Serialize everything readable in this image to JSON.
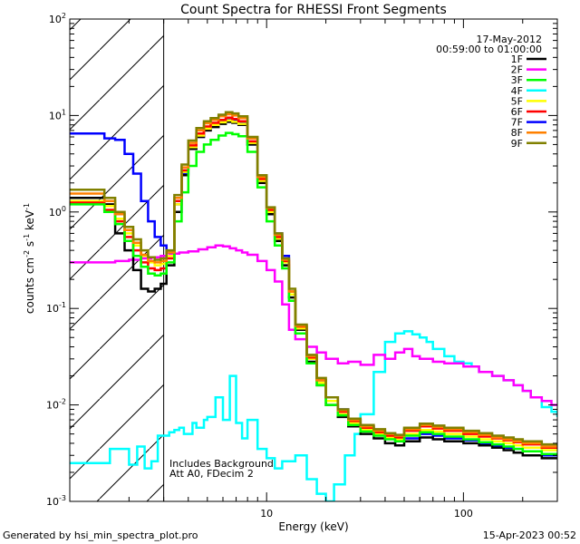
{
  "chart_data": {
    "type": "line",
    "title": "Count Spectra for RHESSI Front Segments",
    "xlabel": "Energy (keV)",
    "ylabel": "counts cm⁻² s⁻¹ keV⁻¹",
    "ylabel_parts": {
      "base": "counts cm",
      "e1": "-2",
      "mid1": " s",
      "e2": "-1",
      "mid2": " keV",
      "e3": "-1"
    },
    "x_scale": "log",
    "y_scale": "log",
    "xlim": [
      1,
      300
    ],
    "ylim": [
      0.001,
      100
    ],
    "x_ticks": [
      {
        "value": 10,
        "label": "10"
      },
      {
        "value": 100,
        "label": "100"
      }
    ],
    "y_ticks": [
      {
        "value": 0.001,
        "base": "10",
        "exp": "-3"
      },
      {
        "value": 0.01,
        "base": "10",
        "exp": "-2"
      },
      {
        "value": 0.1,
        "base": "10",
        "exp": "-1"
      },
      {
        "value": 1,
        "base": "10",
        "exp": "0"
      },
      {
        "value": 10,
        "base": "10",
        "exp": "1"
      },
      {
        "value": 100,
        "base": "10",
        "exp": "2"
      }
    ],
    "hatch_region_x": [
      1,
      3
    ],
    "info_date": "17-May-2012",
    "info_time": "00:59:00 to 01:00:00",
    "annotation_1": "Includes Background",
    "annotation_2": "Att A0, FDecim 2",
    "footer_left": "Generated by hsi_min_spectra_plot.pro",
    "footer_right": "15-Apr-2023 00:52",
    "legend": [
      {
        "name": "1F",
        "color": "#000000"
      },
      {
        "name": "2F",
        "color": "#ff00ff"
      },
      {
        "name": "3F",
        "color": "#00ff00"
      },
      {
        "name": "4F",
        "color": "#00ffff"
      },
      {
        "name": "5F",
        "color": "#ffff00"
      },
      {
        "name": "6F",
        "color": "#ff0000"
      },
      {
        "name": "7F",
        "color": "#0000ff"
      },
      {
        "name": "8F",
        "color": "#ff8000"
      },
      {
        "name": "9F",
        "color": "#808000"
      }
    ],
    "series": [
      {
        "name": "4F",
        "color": "#00ffff",
        "x": [
          1,
          1.4,
          1.6,
          1.8,
          2.0,
          2.2,
          2.4,
          2.6,
          2.8,
          3.0,
          3.2,
          3.4,
          3.6,
          3.8,
          4.2,
          4.4,
          4.8,
          5.0,
          5.5,
          6.0,
          6.5,
          7,
          7.5,
          8,
          9,
          10,
          11,
          12,
          14,
          16,
          18,
          20,
          22,
          25,
          28,
          30,
          35,
          40,
          45,
          50,
          55,
          60,
          65,
          70,
          80,
          90,
          100,
          110,
          120,
          140,
          160,
          180,
          200,
          220,
          250,
          280,
          300
        ],
        "y": [
          0.0025,
          0.0025,
          0.0035,
          0.0035,
          0.0024,
          0.0037,
          0.0022,
          0.0026,
          0.0048,
          0.0048,
          0.0052,
          0.0055,
          0.0058,
          0.005,
          0.0065,
          0.0058,
          0.007,
          0.0075,
          0.012,
          0.007,
          0.02,
          0.0065,
          0.0045,
          0.007,
          0.0035,
          0.0028,
          0.0022,
          0.0026,
          0.003,
          0.0017,
          0.0012,
          0.001,
          0.0015,
          0.003,
          0.005,
          0.008,
          0.022,
          0.045,
          0.055,
          0.058,
          0.054,
          0.05,
          0.045,
          0.038,
          0.032,
          0.028,
          0.027,
          0.025,
          0.022,
          0.02,
          0.018,
          0.016,
          0.014,
          0.012,
          0.0095,
          0.0085,
          0.0075
        ]
      },
      {
        "name": "2F",
        "color": "#ff00ff",
        "x": [
          1,
          1.4,
          1.7,
          2.0,
          2.3,
          2.6,
          2.9,
          3.2,
          3.6,
          4,
          4.5,
          5,
          5.5,
          6,
          6.5,
          7,
          7.5,
          8,
          9,
          10,
          11,
          12,
          13,
          14,
          16,
          18,
          20,
          23,
          26,
          30,
          35,
          40,
          45,
          50,
          55,
          60,
          70,
          80,
          90,
          100,
          120,
          140,
          160,
          180,
          200,
          220,
          250,
          280,
          300
        ],
        "y": [
          0.3,
          0.3,
          0.31,
          0.32,
          0.33,
          0.34,
          0.35,
          0.37,
          0.38,
          0.39,
          0.41,
          0.43,
          0.45,
          0.44,
          0.42,
          0.4,
          0.38,
          0.36,
          0.31,
          0.25,
          0.19,
          0.11,
          0.06,
          0.048,
          0.04,
          0.035,
          0.03,
          0.027,
          0.028,
          0.026,
          0.033,
          0.03,
          0.035,
          0.038,
          0.032,
          0.03,
          0.028,
          0.027,
          0.027,
          0.025,
          0.022,
          0.02,
          0.018,
          0.016,
          0.014,
          0.012,
          0.011,
          0.01,
          0.01
        ]
      },
      {
        "name": "7F",
        "color": "#0000ff",
        "x": [
          1,
          1.25,
          1.5,
          1.7,
          1.9,
          2.1,
          2.3,
          2.5,
          2.7,
          2.9,
          3.1,
          3.4,
          3.7,
          4.0,
          4.4,
          4.8,
          5.2,
          5.7,
          6.2,
          6.7,
          7.2,
          8,
          9,
          10,
          11,
          12,
          13,
          14,
          16,
          18,
          20,
          23,
          26,
          30,
          35,
          40,
          45,
          50,
          60,
          70,
          80,
          100,
          120,
          140,
          160,
          180,
          200,
          250,
          300
        ],
        "y": [
          6.5,
          6.5,
          5.8,
          5.6,
          4.0,
          2.5,
          1.3,
          0.8,
          0.55,
          0.45,
          0.38,
          1.2,
          2.5,
          4.5,
          6.0,
          7.2,
          8.0,
          8.8,
          9.2,
          9.0,
          8.6,
          5.0,
          2.1,
          1.1,
          0.6,
          0.35,
          0.14,
          0.06,
          0.03,
          0.018,
          0.012,
          0.009,
          0.007,
          0.006,
          0.005,
          0.0045,
          0.0042,
          0.0045,
          0.005,
          0.0048,
          0.0045,
          0.0043,
          0.004,
          0.0038,
          0.0036,
          0.0035,
          0.0033,
          0.003,
          0.003
        ]
      },
      {
        "name": "1F",
        "color": "#000000",
        "x": [
          1,
          1.25,
          1.5,
          1.7,
          1.9,
          2.1,
          2.3,
          2.5,
          2.7,
          2.9,
          3.1,
          3.4,
          3.7,
          4.0,
          4.4,
          4.8,
          5.2,
          5.7,
          6.2,
          6.7,
          7.2,
          8,
          9,
          10,
          11,
          12,
          13,
          14,
          16,
          18,
          20,
          23,
          26,
          30,
          35,
          40,
          45,
          50,
          60,
          70,
          80,
          100,
          120,
          140,
          160,
          180,
          200,
          250,
          300
        ],
        "y": [
          1.4,
          1.4,
          1.2,
          0.6,
          0.4,
          0.25,
          0.16,
          0.15,
          0.16,
          0.18,
          0.28,
          1.0,
          2.4,
          4.5,
          6.0,
          7.0,
          7.6,
          8.2,
          8.6,
          8.4,
          8.0,
          5.0,
          2.0,
          0.95,
          0.5,
          0.28,
          0.13,
          0.06,
          0.028,
          0.016,
          0.01,
          0.0075,
          0.006,
          0.005,
          0.0045,
          0.004,
          0.0038,
          0.0042,
          0.0046,
          0.0044,
          0.0042,
          0.004,
          0.0038,
          0.0036,
          0.0034,
          0.0032,
          0.003,
          0.0028,
          0.0028
        ]
      },
      {
        "name": "5F",
        "color": "#ffff00",
        "x": [
          1,
          1.25,
          1.5,
          1.7,
          1.9,
          2.1,
          2.3,
          2.5,
          2.7,
          2.9,
          3.1,
          3.4,
          3.7,
          4.0,
          4.4,
          4.8,
          5.2,
          5.7,
          6.2,
          6.7,
          7.2,
          8,
          9,
          10,
          11,
          12,
          13,
          14,
          16,
          18,
          20,
          23,
          26,
          30,
          35,
          40,
          45,
          50,
          60,
          70,
          80,
          100,
          120,
          140,
          160,
          180,
          200,
          250,
          300
        ],
        "y": [
          1.3,
          1.3,
          1.15,
          0.85,
          0.6,
          0.45,
          0.35,
          0.3,
          0.28,
          0.29,
          0.35,
          1.2,
          2.6,
          4.7,
          6.2,
          7.3,
          8.0,
          8.5,
          8.9,
          8.6,
          8.2,
          5.2,
          2.1,
          1.0,
          0.53,
          0.3,
          0.14,
          0.062,
          0.03,
          0.017,
          0.011,
          0.008,
          0.0065,
          0.0055,
          0.005,
          0.0046,
          0.0044,
          0.005,
          0.0055,
          0.0053,
          0.005,
          0.0047,
          0.0044,
          0.0042,
          0.004,
          0.0038,
          0.0036,
          0.0034,
          0.0034
        ]
      },
      {
        "name": "6F",
        "color": "#ff0000",
        "x": [
          1,
          1.25,
          1.5,
          1.7,
          1.9,
          2.1,
          2.3,
          2.5,
          2.7,
          2.9,
          3.1,
          3.4,
          3.7,
          4.0,
          4.4,
          4.8,
          5.2,
          5.7,
          6.2,
          6.7,
          7.2,
          8,
          9,
          10,
          11,
          12,
          13,
          14,
          16,
          18,
          20,
          23,
          26,
          30,
          35,
          40,
          45,
          50,
          60,
          70,
          80,
          100,
          120,
          140,
          160,
          180,
          200,
          250,
          300
        ],
        "y": [
          1.25,
          1.25,
          1.05,
          0.8,
          0.55,
          0.4,
          0.3,
          0.26,
          0.25,
          0.26,
          0.33,
          1.3,
          2.7,
          4.9,
          6.5,
          7.7,
          8.4,
          9.0,
          9.5,
          9.2,
          8.7,
          5.4,
          2.2,
          1.05,
          0.55,
          0.31,
          0.15,
          0.065,
          0.031,
          0.018,
          0.012,
          0.0085,
          0.0068,
          0.0058,
          0.0052,
          0.0048,
          0.0046,
          0.0054,
          0.006,
          0.0057,
          0.0054,
          0.005,
          0.0047,
          0.0045,
          0.0043,
          0.0041,
          0.0039,
          0.0036,
          0.0036
        ]
      },
      {
        "name": "3F",
        "color": "#00ff00",
        "x": [
          1,
          1.25,
          1.5,
          1.7,
          1.9,
          2.1,
          2.3,
          2.5,
          2.7,
          2.9,
          3.1,
          3.4,
          3.7,
          4.0,
          4.4,
          4.8,
          5.2,
          5.7,
          6.2,
          6.7,
          7.2,
          8,
          9,
          10,
          11,
          12,
          13,
          14,
          16,
          18,
          20,
          23,
          26,
          30,
          35,
          40,
          45,
          50,
          60,
          70,
          80,
          100,
          120,
          140,
          160,
          180,
          200,
          250,
          300
        ],
        "y": [
          1.2,
          1.2,
          1.0,
          0.75,
          0.5,
          0.35,
          0.27,
          0.23,
          0.22,
          0.23,
          0.3,
          0.8,
          1.6,
          3.0,
          4.2,
          5.0,
          5.6,
          6.2,
          6.6,
          6.4,
          6.1,
          4.2,
          1.8,
          0.8,
          0.45,
          0.26,
          0.12,
          0.055,
          0.027,
          0.016,
          0.01,
          0.0078,
          0.0062,
          0.0053,
          0.0048,
          0.0044,
          0.0042,
          0.0048,
          0.0052,
          0.005,
          0.0047,
          0.0044,
          0.0041,
          0.0039,
          0.0037,
          0.0035,
          0.0033,
          0.0031,
          0.0031
        ]
      },
      {
        "name": "8F",
        "color": "#ff8000",
        "x": [
          1,
          1.25,
          1.5,
          1.7,
          1.9,
          2.1,
          2.3,
          2.5,
          2.7,
          2.9,
          3.1,
          3.4,
          3.7,
          4.0,
          4.4,
          4.8,
          5.2,
          5.7,
          6.2,
          6.7,
          7.2,
          8,
          9,
          10,
          11,
          12,
          13,
          14,
          16,
          18,
          20,
          23,
          26,
          30,
          35,
          40,
          45,
          50,
          60,
          70,
          80,
          100,
          120,
          140,
          160,
          180,
          200,
          250,
          300
        ],
        "y": [
          1.55,
          1.55,
          1.3,
          0.95,
          0.65,
          0.48,
          0.36,
          0.31,
          0.3,
          0.31,
          0.38,
          1.4,
          2.9,
          5.2,
          7.0,
          8.3,
          9.0,
          9.8,
          10.3,
          10.0,
          9.4,
          5.8,
          2.3,
          1.1,
          0.58,
          0.32,
          0.15,
          0.066,
          0.032,
          0.018,
          0.012,
          0.0088,
          0.007,
          0.006,
          0.0054,
          0.005,
          0.0048,
          0.0056,
          0.0062,
          0.0059,
          0.0056,
          0.0052,
          0.0049,
          0.0046,
          0.0044,
          0.0042,
          0.004,
          0.0037,
          0.0037
        ]
      },
      {
        "name": "9F",
        "color": "#808000",
        "x": [
          1,
          1.25,
          1.5,
          1.7,
          1.9,
          2.1,
          2.3,
          2.5,
          2.7,
          2.9,
          3.1,
          3.4,
          3.7,
          4.0,
          4.4,
          4.8,
          5.2,
          5.7,
          6.2,
          6.7,
          7.2,
          8,
          9,
          10,
          11,
          12,
          13,
          14,
          16,
          18,
          20,
          23,
          26,
          30,
          35,
          40,
          45,
          50,
          60,
          70,
          80,
          100,
          120,
          140,
          160,
          180,
          200,
          250,
          300
        ],
        "y": [
          1.7,
          1.7,
          1.4,
          1.0,
          0.7,
          0.52,
          0.4,
          0.34,
          0.32,
          0.33,
          0.4,
          1.5,
          3.1,
          5.5,
          7.4,
          8.7,
          9.4,
          10.2,
          10.8,
          10.5,
          9.8,
          6.0,
          2.4,
          1.12,
          0.6,
          0.33,
          0.16,
          0.068,
          0.033,
          0.019,
          0.012,
          0.009,
          0.0072,
          0.0062,
          0.0056,
          0.0051,
          0.0049,
          0.0058,
          0.0064,
          0.0061,
          0.0058,
          0.0054,
          0.0051,
          0.0048,
          0.0046,
          0.0044,
          0.0042,
          0.0039,
          0.0039
        ]
      }
    ]
  }
}
